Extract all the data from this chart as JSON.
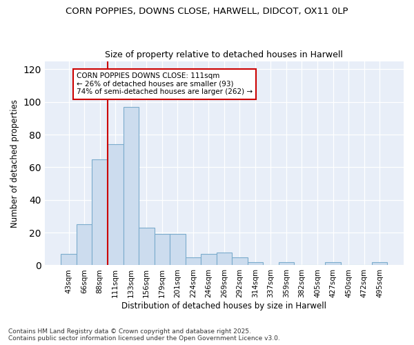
{
  "title1": "CORN POPPIES, DOWNS CLOSE, HARWELL, DIDCOT, OX11 0LP",
  "title2": "Size of property relative to detached houses in Harwell",
  "xlabel": "Distribution of detached houses by size in Harwell",
  "ylabel": "Number of detached properties",
  "bar_color": "#ccdcee",
  "bar_edge_color": "#7aabcc",
  "bin_labels": [
    "43sqm",
    "66sqm",
    "88sqm",
    "111sqm",
    "133sqm",
    "156sqm",
    "179sqm",
    "201sqm",
    "224sqm",
    "246sqm",
    "269sqm",
    "292sqm",
    "314sqm",
    "337sqm",
    "359sqm",
    "382sqm",
    "405sqm",
    "427sqm",
    "450sqm",
    "472sqm",
    "495sqm"
  ],
  "bar_values": [
    7,
    25,
    65,
    74,
    97,
    23,
    19,
    19,
    5,
    7,
    8,
    5,
    2,
    0,
    2,
    0,
    0,
    2,
    0,
    0,
    2
  ],
  "vline_bin_index": 3,
  "vline_color": "#cc0000",
  "annotation_text": "CORN POPPIES DOWNS CLOSE: 111sqm\n← 26% of detached houses are smaller (93)\n74% of semi-detached houses are larger (262) →",
  "annotation_box_color": "#ffffff",
  "annotation_box_edge": "#cc0000",
  "ylim": [
    0,
    125
  ],
  "yticks": [
    0,
    20,
    40,
    60,
    80,
    100,
    120
  ],
  "footer": "Contains HM Land Registry data © Crown copyright and database right 2025.\nContains public sector information licensed under the Open Government Licence v3.0.",
  "bg_color": "#ffffff",
  "plot_bg_color": "#e8eef8"
}
